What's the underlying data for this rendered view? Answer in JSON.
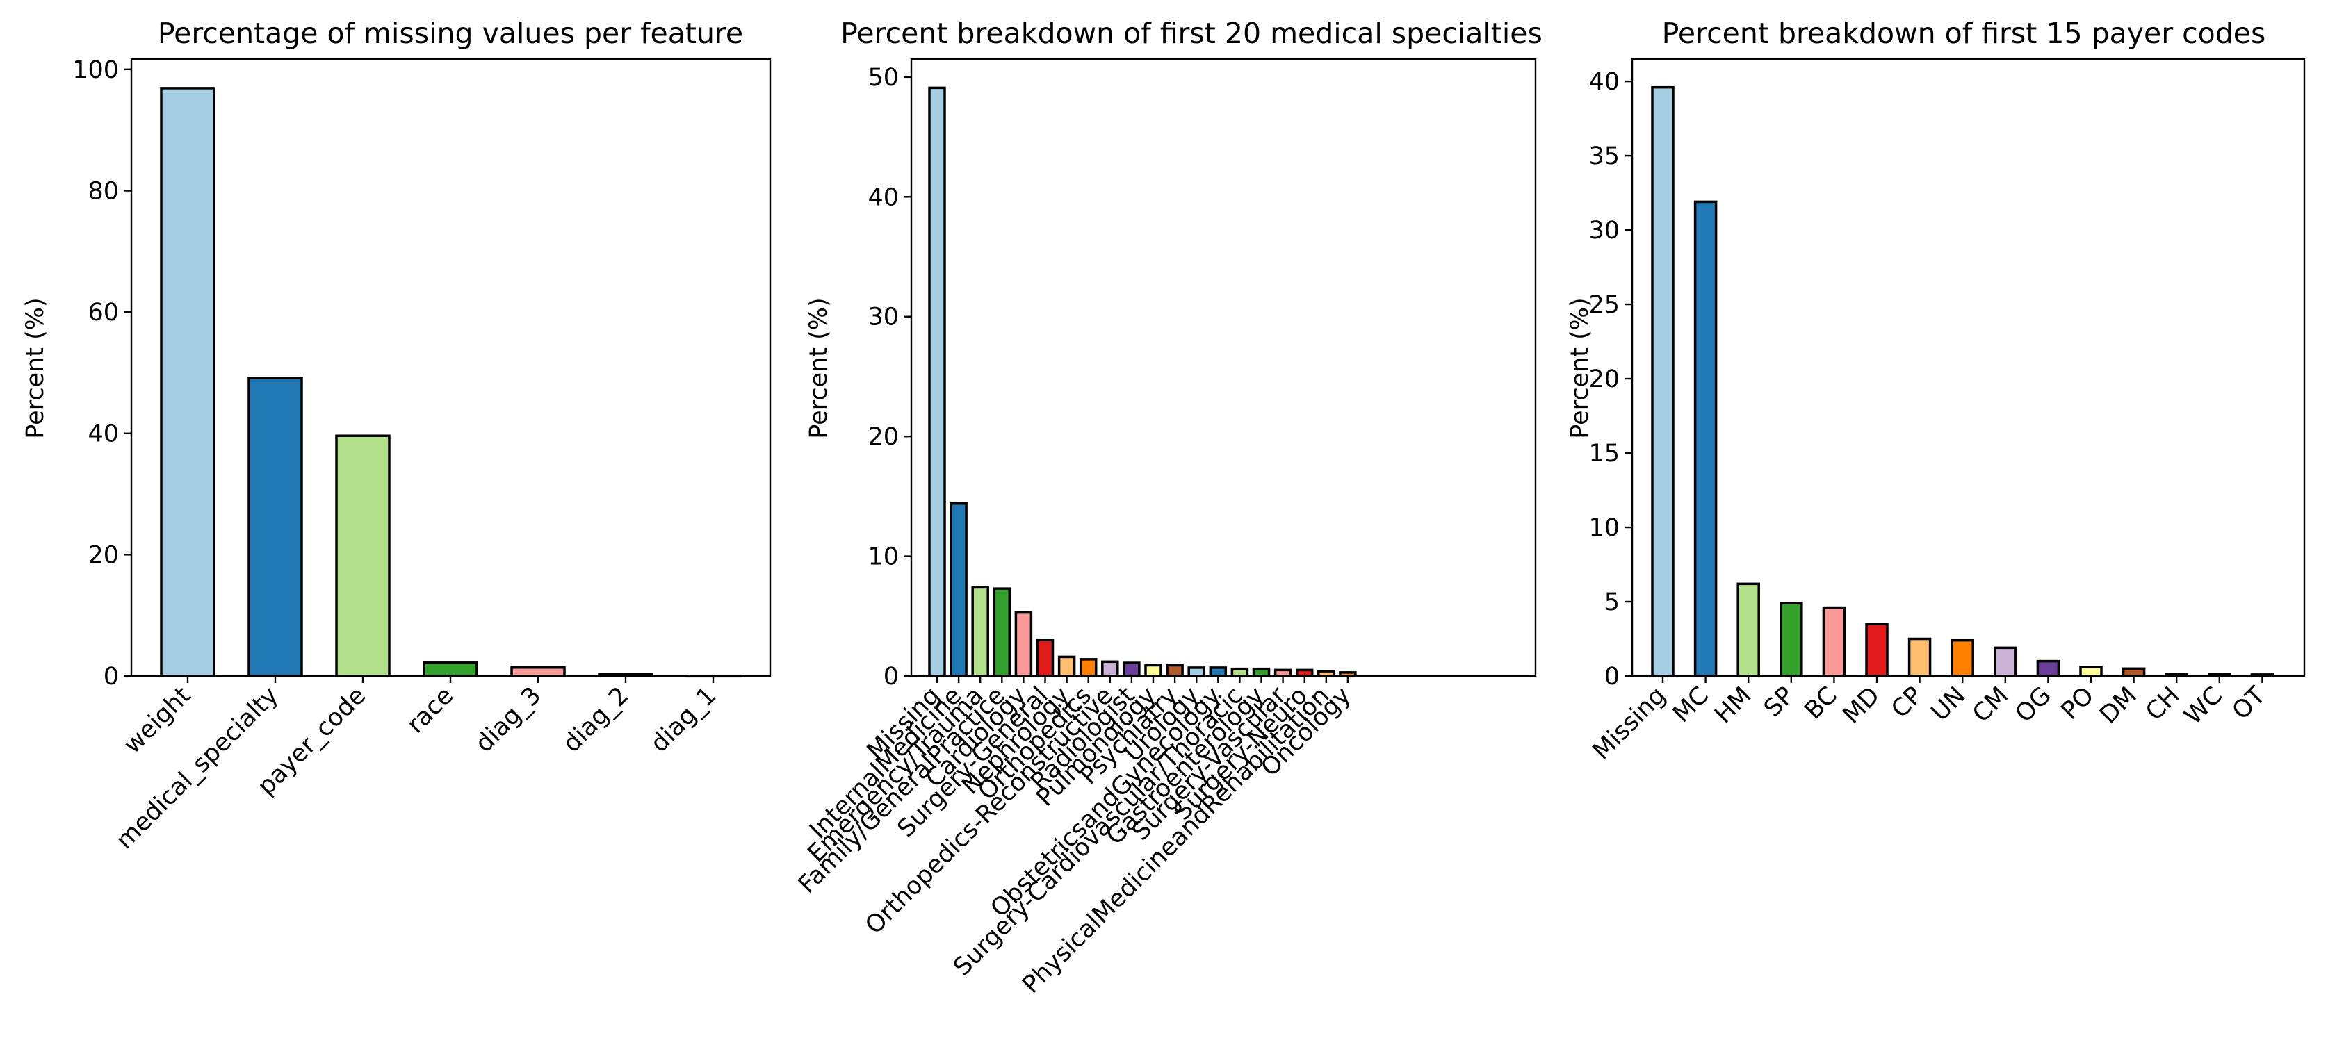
{
  "palette": [
    "#a6cee3",
    "#1f78b4",
    "#b2df8a",
    "#33a02c",
    "#fb9a99",
    "#e31a1c",
    "#fdbf6f",
    "#ff7f00",
    "#cab2d6",
    "#6a3d9a",
    "#ffff99",
    "#b15928"
  ],
  "chart_data": [
    {
      "type": "bar",
      "title": "Percentage of missing values per feature",
      "xlabel": "",
      "ylabel": "Percent (%)",
      "categories": [
        "weight",
        "medical_specialty",
        "payer_code",
        "race",
        "diag_3",
        "diag_2",
        "diag_1"
      ],
      "values": [
        96.9,
        49.1,
        39.6,
        2.2,
        1.4,
        0.35,
        0.02
      ],
      "ylim": [
        0,
        101.7
      ],
      "yticks": [
        0,
        20,
        40,
        60,
        80,
        100
      ],
      "grid": false
    },
    {
      "type": "bar",
      "title": "Percent breakdown of first 20 medical specialties",
      "xlabel": "",
      "ylabel": "Percent (%)",
      "categories": [
        "Missing",
        "InternalMedicine",
        "Emergency/Trauma",
        "Family/GeneralPractice",
        "Cardiology",
        "Surgery-General",
        "Nephrology",
        "Orthopedics",
        "Orthopedics-Reconstructive",
        "Radiologist",
        "Pulmonology",
        "Psychiatry",
        "Urology",
        "ObstetricsandGynecology",
        "Surgery-Cardiovascular/Thoracic",
        "Gastroenterology",
        "Surgery-Vascular",
        "Surgery-Neuro",
        "PhysicalMedicineandRehabilitation",
        "Oncology"
      ],
      "values": [
        49.1,
        14.4,
        7.4,
        7.3,
        5.3,
        3.0,
        1.6,
        1.4,
        1.2,
        1.1,
        0.9,
        0.9,
        0.7,
        0.7,
        0.6,
        0.6,
        0.5,
        0.5,
        0.4,
        0.3
      ],
      "ylim": [
        0,
        51.5
      ],
      "yticks": [
        0,
        10,
        20,
        30,
        40,
        50
      ],
      "grid": false
    },
    {
      "type": "bar",
      "title": "Percent breakdown of first 15 payer codes",
      "xlabel": "",
      "ylabel": "Percent (%)",
      "categories": [
        "Missing",
        "MC",
        "HM",
        "SP",
        "BC",
        "MD",
        "CP",
        "UN",
        "CM",
        "OG",
        "PO",
        "DM",
        "CH",
        "WC",
        "OT"
      ],
      "values": [
        39.6,
        31.9,
        6.2,
        4.9,
        4.6,
        3.5,
        2.5,
        2.4,
        1.9,
        1.0,
        0.6,
        0.5,
        0.15,
        0.13,
        0.1
      ],
      "ylim": [
        0,
        41.5
      ],
      "yticks": [
        0,
        5,
        10,
        15,
        20,
        25,
        30,
        35,
        40
      ],
      "grid": false
    }
  ]
}
